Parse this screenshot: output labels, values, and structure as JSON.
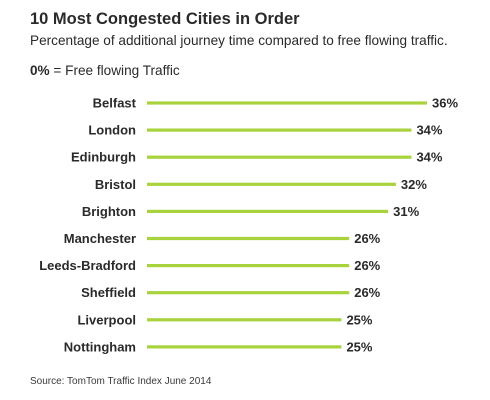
{
  "header": {
    "title": "10 Most Congested Cities in Order",
    "subtitle": "Percentage of additional journey time compared to free flowing traffic.",
    "note_value": "0%",
    "note_text": " = Free flowing Traffic"
  },
  "footer": {
    "source": "Source:  TomTom Traffic Index June 2014"
  },
  "colors": {
    "bar": "#a8d33d",
    "text": "#2a2a2a"
  },
  "chart_data": {
    "type": "bar",
    "orientation": "horizontal",
    "categories": [
      "Belfast",
      "London",
      "Edinburgh",
      "Bristol",
      "Brighton",
      "Manchester",
      "Leeds-Bradford",
      "Sheffield",
      "Liverpool",
      "Nottingham"
    ],
    "values": [
      36,
      34,
      34,
      32,
      31,
      26,
      26,
      26,
      25,
      25
    ],
    "value_labels": [
      "36%",
      "34%",
      "34%",
      "32%",
      "31%",
      "26%",
      "26%",
      "26%",
      "25%",
      "25%"
    ],
    "title": "10 Most Congested Cities in Order",
    "xlabel": "",
    "ylabel": "",
    "xlim": [
      0,
      36
    ],
    "grid": false,
    "legend": "none"
  }
}
